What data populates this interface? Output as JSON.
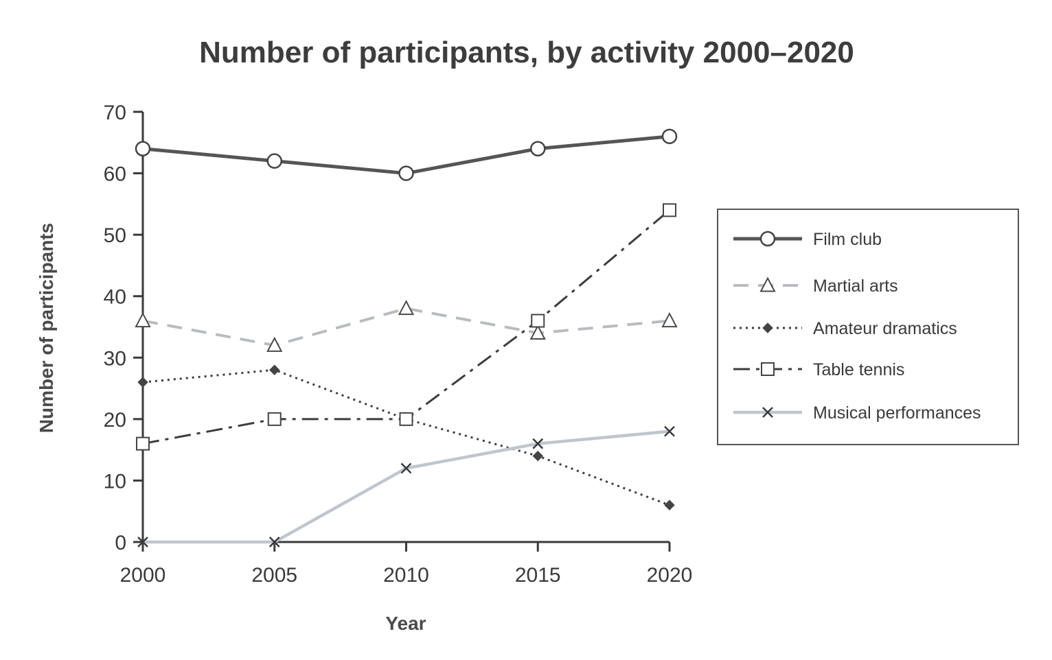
{
  "chart_data": {
    "type": "line",
    "title": "Number of participants, by activity 2000–2020",
    "xlabel": "Year",
    "ylabel": "Number of participants",
    "x": [
      2000,
      2005,
      2010,
      2015,
      2020
    ],
    "x_tick_labels": [
      "2000",
      "2005",
      "2010",
      "2015",
      "2020"
    ],
    "y_ticks": [
      0,
      10,
      20,
      30,
      40,
      50,
      60,
      70
    ],
    "y_tick_labels": [
      "0",
      "10",
      "20",
      "30",
      "40",
      "50",
      "60",
      "70"
    ],
    "ylim": [
      0,
      70
    ],
    "grid": false,
    "legend_position": "right",
    "series": [
      {
        "name": "Film club",
        "values": [
          64,
          62,
          60,
          64,
          66
        ],
        "color": "#555555",
        "line_style": "solid",
        "marker": "circle"
      },
      {
        "name": "Martial arts",
        "values": [
          36,
          32,
          38,
          34,
          36
        ],
        "color": "#b8bcc0",
        "line_style": "dashed",
        "marker": "triangle"
      },
      {
        "name": "Amateur dramatics",
        "values": [
          26,
          28,
          20,
          14,
          6
        ],
        "color": "#3c3c3c",
        "line_style": "dotted",
        "marker": "diamond"
      },
      {
        "name": "Table tennis",
        "values": [
          16,
          20,
          20,
          36,
          54
        ],
        "color": "#3c3c3c",
        "line_style": "dash-dot",
        "marker": "square"
      },
      {
        "name": "Musical performances",
        "values": [
          0,
          0,
          12,
          16,
          18
        ],
        "color": "#bfc6cd",
        "line_style": "solid",
        "marker": "x"
      }
    ]
  }
}
